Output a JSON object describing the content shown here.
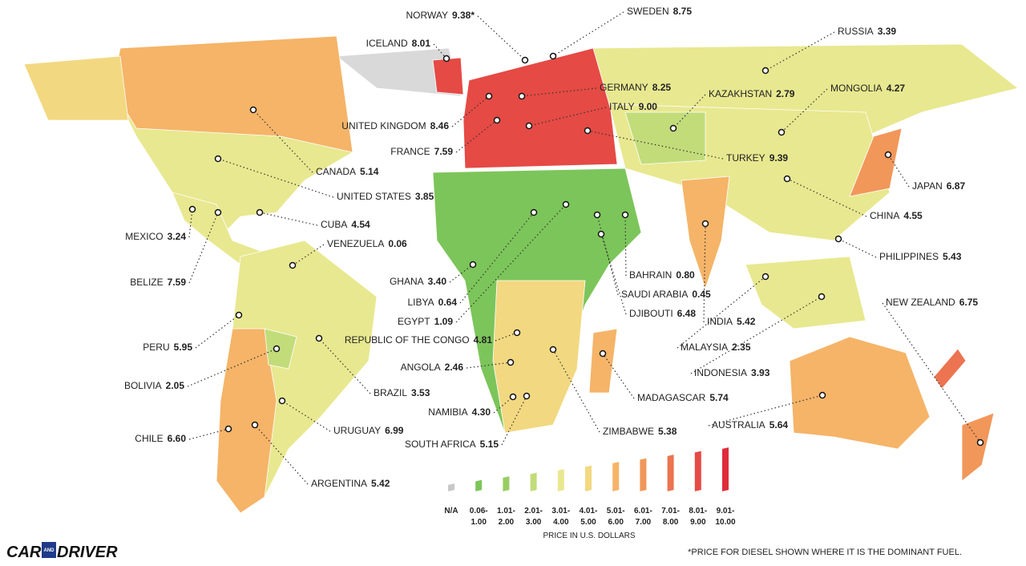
{
  "labels": [
    {
      "name": "NORWAY",
      "price": "9.38*"
    },
    {
      "name": "SWEDEN",
      "price": "8.75"
    },
    {
      "name": "ICELAND",
      "price": "8.01"
    },
    {
      "name": "RUSSIA",
      "price": "3.39"
    },
    {
      "name": "GERMANY",
      "price": "8.25"
    },
    {
      "name": "KAZAKHSTAN",
      "price": "2.79"
    },
    {
      "name": "MONGOLIA",
      "price": "4.27"
    },
    {
      "name": "ITALY",
      "price": "9.00"
    },
    {
      "name": "UNITED KINGDOM",
      "price": "8.46"
    },
    {
      "name": "FRANCE",
      "price": "7.59"
    },
    {
      "name": "TURKEY",
      "price": "9.39"
    },
    {
      "name": "CANADA",
      "price": "5.14"
    },
    {
      "name": "JAPAN",
      "price": "6.87"
    },
    {
      "name": "UNITED STATES",
      "price": "3.85"
    },
    {
      "name": "CHINA",
      "price": "4.55"
    },
    {
      "name": "CUBA",
      "price": "4.54"
    },
    {
      "name": "MEXICO",
      "price": "3.24"
    },
    {
      "name": "VENEZUELA",
      "price": "0.06"
    },
    {
      "name": "PHILIPPINES",
      "price": "5.43"
    },
    {
      "name": "BELIZE",
      "price": "7.59"
    },
    {
      "name": "GHANA",
      "price": "3.40"
    },
    {
      "name": "BAHRAIN",
      "price": "0.80"
    },
    {
      "name": "LIBYA",
      "price": "0.64"
    },
    {
      "name": "SAUDI ARABIA",
      "price": "0.45"
    },
    {
      "name": "EGYPT",
      "price": "1.09"
    },
    {
      "name": "DJIBOUTI",
      "price": "6.48"
    },
    {
      "name": "INDIA",
      "price": "5.42"
    },
    {
      "name": "NEW ZEALAND",
      "price": "6.75"
    },
    {
      "name": "MALAYSIA",
      "price": "2.35"
    },
    {
      "name": "REPUBLIC OF THE CONGO",
      "price": "4.81"
    },
    {
      "name": "PERU",
      "price": "5.95"
    },
    {
      "name": "ANGOLA",
      "price": "2.46"
    },
    {
      "name": "INDONESIA",
      "price": "3.93"
    },
    {
      "name": "BOLIVIA",
      "price": "2.05"
    },
    {
      "name": "BRAZIL",
      "price": "3.53"
    },
    {
      "name": "MADAGASCAR",
      "price": "5.74"
    },
    {
      "name": "NAMIBIA",
      "price": "4.30"
    },
    {
      "name": "AUSTRALIA",
      "price": "5.64"
    },
    {
      "name": "URUGUAY",
      "price": "6.99"
    },
    {
      "name": "ZIMBABWE",
      "price": "5.38"
    },
    {
      "name": "CHILE",
      "price": "6.60"
    },
    {
      "name": "SOUTH AFRICA",
      "price": "5.15"
    },
    {
      "name": "ARGENTINA",
      "price": "5.42"
    }
  ],
  "legend": {
    "title": "PRICE IN U.S. DOLLARS",
    "items": [
      {
        "lines": [
          "N/A"
        ],
        "color": "#c8c8c8"
      },
      {
        "lines": [
          "0.06-",
          "1.00"
        ],
        "color": "#7cc55a"
      },
      {
        "lines": [
          "1.01-",
          "2.00"
        ],
        "color": "#98cc62"
      },
      {
        "lines": [
          "2.01-",
          "3.00"
        ],
        "color": "#c2dc7a"
      },
      {
        "lines": [
          "3.01-",
          "4.00"
        ],
        "color": "#e8e890"
      },
      {
        "lines": [
          "4.01-",
          "5.00"
        ],
        "color": "#f2d880"
      },
      {
        "lines": [
          "5.01-",
          "6.00"
        ],
        "color": "#f5b468"
      },
      {
        "lines": [
          "6.01-",
          "7.00"
        ],
        "color": "#f1975a"
      },
      {
        "lines": [
          "7.01-",
          "8.00"
        ],
        "color": "#ec7450"
      },
      {
        "lines": [
          "8.01-",
          "9.00"
        ],
        "color": "#e54a45"
      },
      {
        "lines": [
          "9.01-",
          "10.00"
        ],
        "color": "#e02b3c"
      }
    ]
  },
  "footnote": "*PRICE FOR DIESEL SHOWN WHERE IT IS THE DOMINANT FUEL.",
  "logo": {
    "left": "CAR",
    "middle": "AND",
    "right": "DRIVER"
  }
}
